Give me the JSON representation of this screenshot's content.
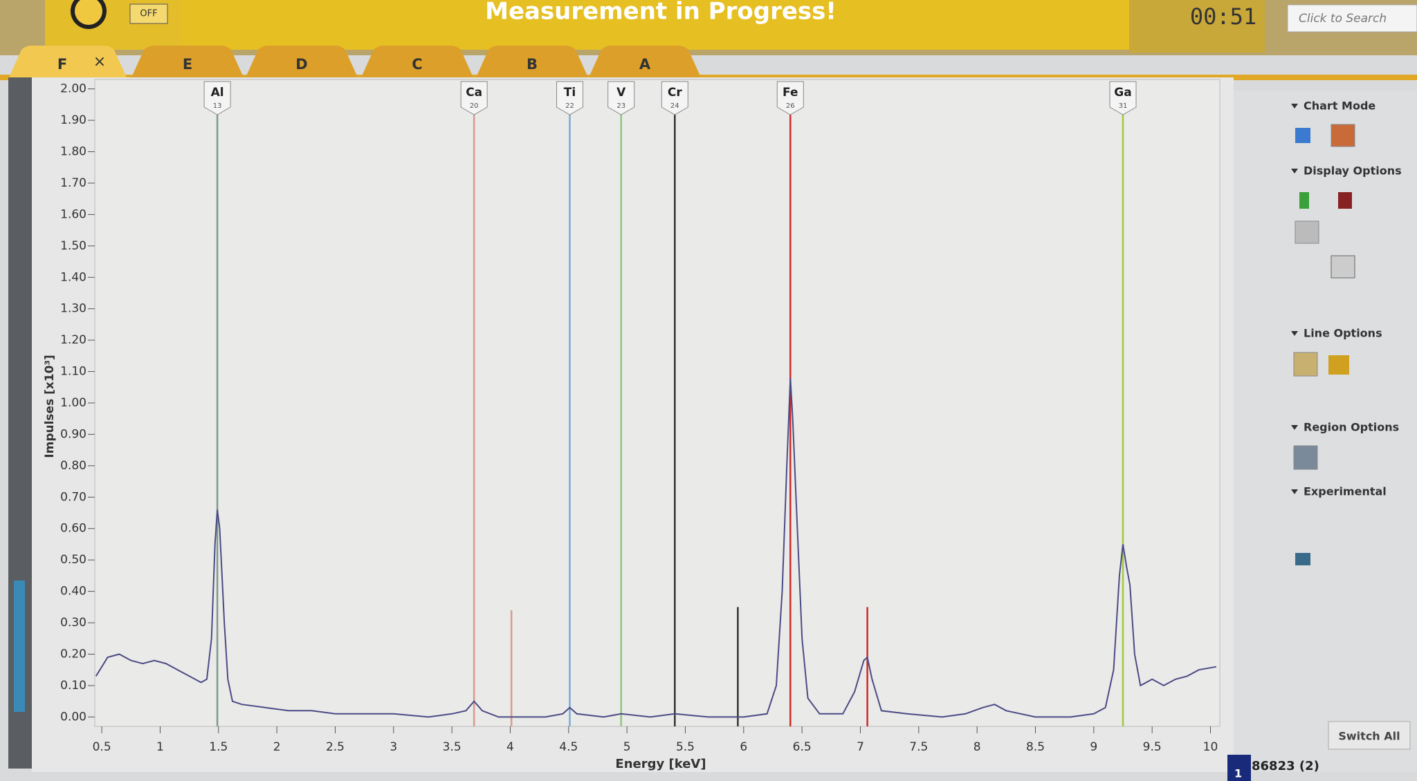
{
  "header": {
    "switch": "OFF",
    "title": "Measurement in Progress!",
    "timer": "00:51",
    "search": "Click to Search"
  },
  "tabs": [
    "F",
    "E",
    "D",
    "C",
    "B",
    "A"
  ],
  "tab_close": "×",
  "sidebar": {
    "sections": [
      "Chart Mode",
      "Display Options",
      "Line Options",
      "Region Options",
      "Experimental"
    ],
    "switch_all": "Switch All",
    "spectrum": "86823 (2)",
    "spectrum_index": "1"
  },
  "chart_data": {
    "type": "line",
    "x_label": "Energy [keV]",
    "y_label": "Impulses [x10³]",
    "color": "#4b4a86",
    "x": [
      0.45,
      0.55,
      0.65,
      0.75,
      0.85,
      0.95,
      1.05,
      1.15,
      1.25,
      1.35,
      1.4,
      1.44,
      1.47,
      1.49,
      1.51,
      1.53,
      1.55,
      1.58,
      1.62,
      1.7,
      1.9,
      2.1,
      2.3,
      2.5,
      2.7,
      3.0,
      3.3,
      3.5,
      3.62,
      3.69,
      3.76,
      3.9,
      4.1,
      4.3,
      4.45,
      4.51,
      4.57,
      4.8,
      4.95,
      5.2,
      5.41,
      5.7,
      6.0,
      6.2,
      6.28,
      6.33,
      6.37,
      6.4,
      6.42,
      6.46,
      6.5,
      6.55,
      6.65,
      6.85,
      6.95,
      7.03,
      7.06,
      7.1,
      7.18,
      7.4,
      7.7,
      7.9,
      8.05,
      8.15,
      8.25,
      8.5,
      8.8,
      9.0,
      9.1,
      9.17,
      9.22,
      9.25,
      9.28,
      9.31,
      9.35,
      9.4,
      9.5,
      9.6,
      9.7,
      9.8,
      9.9,
      10.05
    ],
    "values": [
      0.13,
      0.19,
      0.2,
      0.18,
      0.17,
      0.18,
      0.17,
      0.15,
      0.13,
      0.11,
      0.12,
      0.25,
      0.55,
      0.66,
      0.6,
      0.45,
      0.3,
      0.12,
      0.05,
      0.04,
      0.03,
      0.02,
      0.02,
      0.01,
      0.01,
      0.01,
      0.0,
      0.01,
      0.02,
      0.05,
      0.02,
      0.0,
      0.0,
      0.0,
      0.01,
      0.03,
      0.01,
      0.0,
      0.01,
      0.0,
      0.01,
      0.0,
      0.0,
      0.01,
      0.1,
      0.4,
      0.8,
      1.08,
      0.95,
      0.6,
      0.25,
      0.06,
      0.01,
      0.01,
      0.08,
      0.18,
      0.19,
      0.12,
      0.02,
      0.01,
      0.0,
      0.01,
      0.03,
      0.04,
      0.02,
      0.0,
      0.0,
      0.01,
      0.03,
      0.15,
      0.45,
      0.55,
      0.48,
      0.42,
      0.2,
      0.1,
      0.12,
      0.1,
      0.12,
      0.13,
      0.15,
      0.16
    ],
    "xlim": [
      0.44,
      10.08
    ],
    "ylim": [
      -0.03,
      2.03
    ],
    "xticks": [
      0.5,
      1,
      1.5,
      2,
      2.5,
      3,
      3.5,
      4,
      4.5,
      5,
      5.5,
      6,
      6.5,
      7,
      7.5,
      8,
      8.5,
      9,
      9.5,
      10
    ],
    "yticks": [
      {
        "value": 0,
        "label": "0.00"
      },
      {
        "value": 0.1,
        "label": "0.10"
      },
      {
        "value": 0.2,
        "label": "0.20"
      },
      {
        "value": 0.3,
        "label": "0.30"
      },
      {
        "value": 0.4,
        "label": "0.40"
      },
      {
        "value": 0.5,
        "label": "0.50"
      },
      {
        "value": 0.6,
        "label": "0.60"
      },
      {
        "value": 0.7,
        "label": "0.70"
      },
      {
        "value": 0.8,
        "label": "0.80"
      },
      {
        "value": 0.9,
        "label": "0.90"
      },
      {
        "value": 1,
        "label": "1.00"
      },
      {
        "value": 1.1,
        "label": "1.10"
      },
      {
        "value": 1.2,
        "label": "1.20"
      },
      {
        "value": 1.3,
        "label": "1.30"
      },
      {
        "value": 1.4,
        "label": "1.40"
      },
      {
        "value": 1.5,
        "label": "1.50"
      },
      {
        "value": 1.6,
        "label": "1.60"
      },
      {
        "value": 1.7,
        "label": "1.70"
      },
      {
        "value": 1.8,
        "label": "1.80"
      },
      {
        "value": 1.9,
        "label": "1.90"
      },
      {
        "value": 2,
        "label": "2.00"
      }
    ],
    "elements": [
      {
        "symbol": "Al",
        "z": 13,
        "energy": 1.49,
        "color": "#7a9a8a"
      },
      {
        "symbol": "Ca",
        "z": 20,
        "energy": 3.69,
        "color": "#d99a90",
        "beta_energy": 4.01,
        "beta_height": 0.34
      },
      {
        "symbol": "Ti",
        "z": 22,
        "energy": 4.51,
        "color": "#7aaad8"
      },
      {
        "symbol": "V",
        "z": 23,
        "energy": 4.95,
        "color": "#8cc87a"
      },
      {
        "symbol": "Cr",
        "z": 24,
        "energy": 5.41,
        "color": "#333333",
        "beta_energy": 5.95,
        "beta_height": 0.35
      },
      {
        "symbol": "Fe",
        "z": 26,
        "energy": 6.4,
        "color": "#cc2a2a",
        "beta_energy": 7.06,
        "beta_height": 0.35
      },
      {
        "symbol": "Ga",
        "z": 31,
        "energy": 9.25,
        "color": "#9ccc3a"
      }
    ]
  }
}
